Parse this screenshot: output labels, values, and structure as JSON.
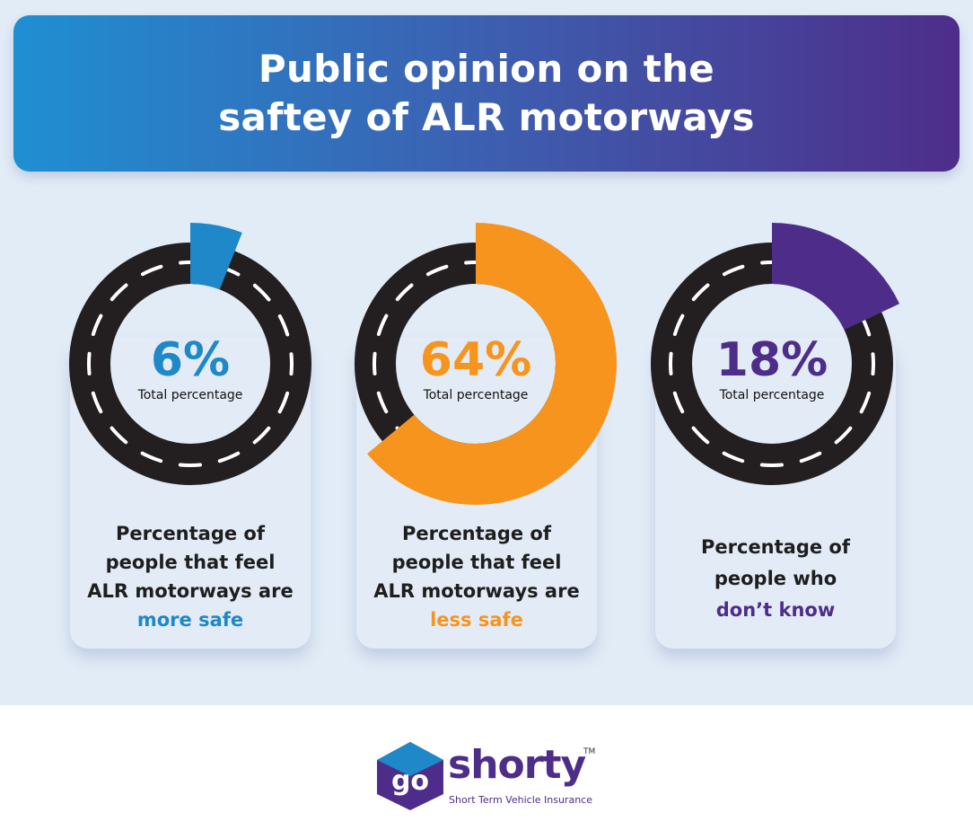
{
  "title_lines": [
    "Public opinion on the",
    "saftey of ALR motorways"
  ],
  "chart_data": {
    "type": "pie",
    "title": "Public opinion on the saftey of ALR motorways",
    "unit": "%",
    "items": [
      {
        "value": 6,
        "value_label": "6%",
        "sublabel": "Total percentage",
        "text_lines": [
          "Percentage of",
          "people that feel",
          "ALR motorways are"
        ],
        "highlight": "more safe",
        "color": "#1e88c9"
      },
      {
        "value": 64,
        "value_label": "64%",
        "sublabel": "Total percentage",
        "text_lines": [
          "Percentage of",
          "people that feel",
          "ALR motorways are"
        ],
        "highlight": "less safe",
        "color": "#f7941d"
      },
      {
        "value": 18,
        "value_label": "18%",
        "sublabel": "Total percentage",
        "text_lines": [
          "Percentage of",
          "people who"
        ],
        "highlight": "don’t know",
        "color": "#4e2d8a"
      }
    ]
  },
  "logo": {
    "badge_text": "go",
    "brand": "shorty",
    "tm": "TM",
    "tagline": "Short Term Vehicle Insurance"
  },
  "colors": {
    "road": "#231f20",
    "lane_marking": "#ffffff",
    "background": "#e2ecf7"
  }
}
